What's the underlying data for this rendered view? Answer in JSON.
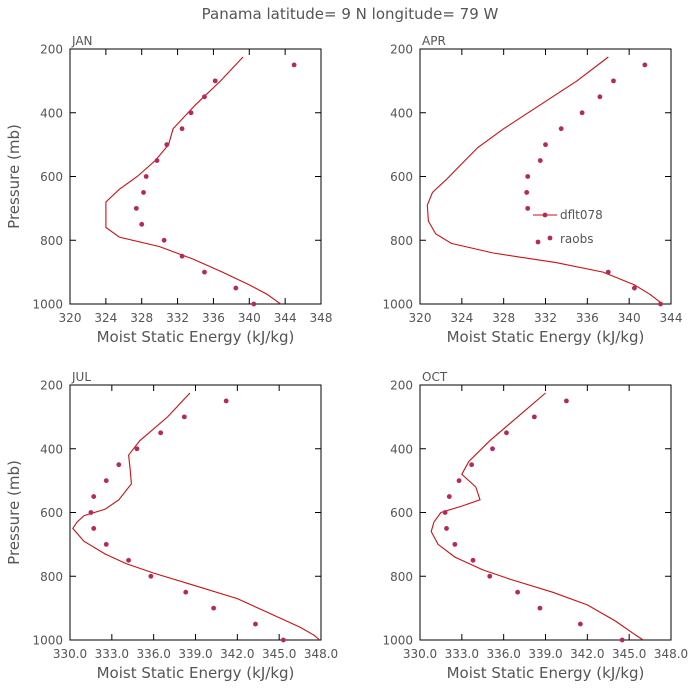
{
  "figure": {
    "title": "Panama  latitude= 9 N longitude= 79 W"
  },
  "colors": {
    "model_line": "#cc1111",
    "obs_dots": "#b8285a",
    "axes": "#000000",
    "text": "#555555"
  },
  "chart_data": [
    {
      "type": "line",
      "title": "JAN",
      "xlabel": "Moist Static Energy (kJ/kg)",
      "ylabel": "Pressure (mb)",
      "xlim": [
        320,
        348
      ],
      "ylim": [
        200,
        1000
      ],
      "y_inverted": true,
      "xticks": [
        320,
        324,
        328,
        332,
        336,
        340,
        344,
        348
      ],
      "xtick_labels": [
        "320",
        "324",
        "328",
        "332",
        "336",
        "340",
        "344",
        "348"
      ],
      "yticks": [
        200,
        400,
        600,
        800,
        1000
      ],
      "ytick_labels": [
        "200",
        "400",
        "600",
        "800",
        "1000"
      ],
      "legend": null,
      "series": [
        {
          "name": "dflt078",
          "style": "line",
          "points": [
            [
              339.3,
              225
            ],
            [
              336.8,
              300
            ],
            [
              334.0,
              375
            ],
            [
              331.5,
              450
            ],
            [
              331.0,
              500
            ],
            [
              329.5,
              550
            ],
            [
              327.5,
              600
            ],
            [
              325.5,
              640
            ],
            [
              324.0,
              680
            ],
            [
              324.0,
              720
            ],
            [
              324.0,
              760
            ],
            [
              325.5,
              790
            ],
            [
              330.0,
              820
            ],
            [
              333.8,
              860
            ],
            [
              337.0,
              900
            ],
            [
              340.0,
              940
            ],
            [
              342.0,
              970
            ],
            [
              343.0,
              990
            ],
            [
              343.5,
              1000
            ]
          ]
        },
        {
          "name": "raobs",
          "style": "dots",
          "points": [
            [
              345.0,
              250
            ],
            [
              336.2,
              300
            ],
            [
              335.0,
              350
            ],
            [
              333.5,
              400
            ],
            [
              332.5,
              450
            ],
            [
              330.8,
              500
            ],
            [
              329.7,
              550
            ],
            [
              328.5,
              600
            ],
            [
              328.2,
              650
            ],
            [
              327.4,
              700
            ],
            [
              328.0,
              750
            ],
            [
              330.5,
              800
            ],
            [
              332.5,
              850
            ],
            [
              335.0,
              900
            ],
            [
              338.5,
              950
            ],
            [
              340.5,
              1000
            ]
          ]
        }
      ]
    },
    {
      "type": "line",
      "title": "APR",
      "xlabel": "Moist Static Energy (kJ/kg)",
      "ylabel": "",
      "xlim": [
        320,
        344
      ],
      "ylim": [
        200,
        1000
      ],
      "y_inverted": true,
      "xticks": [
        320,
        324,
        328,
        332,
        336,
        340,
        344
      ],
      "xtick_labels": [
        "320",
        "324",
        "328",
        "332",
        "336",
        "340",
        "344"
      ],
      "yticks": [
        200,
        400,
        600,
        800,
        1000
      ],
      "ytick_labels": [
        "200",
        "400",
        "600",
        "800",
        "1000"
      ],
      "legend": {
        "placement": "right-center",
        "entries": [
          "dflt078",
          "raobs"
        ]
      },
      "series": [
        {
          "name": "dflt078",
          "style": "line",
          "points": [
            [
              338.0,
              225
            ],
            [
              335.0,
              300
            ],
            [
              331.5,
              375
            ],
            [
              328.0,
              450
            ],
            [
              325.5,
              510
            ],
            [
              324.0,
              560
            ],
            [
              322.5,
              610
            ],
            [
              321.2,
              650
            ],
            [
              320.7,
              690
            ],
            [
              320.8,
              740
            ],
            [
              321.5,
              780
            ],
            [
              323.0,
              810
            ],
            [
              327.0,
              840
            ],
            [
              333.0,
              870
            ],
            [
              337.5,
              900
            ],
            [
              340.5,
              940
            ],
            [
              342.0,
              970
            ],
            [
              343.0,
              995
            ]
          ]
        },
        {
          "name": "raobs",
          "style": "dots",
          "points": [
            [
              341.5,
              250
            ],
            [
              338.5,
              300
            ],
            [
              337.2,
              350
            ],
            [
              335.5,
              400
            ],
            [
              333.5,
              450
            ],
            [
              332.0,
              500
            ],
            [
              331.5,
              550
            ],
            [
              330.3,
              600
            ],
            [
              330.2,
              650
            ],
            [
              330.3,
              700
            ],
            [
              338.0,
              900
            ],
            [
              340.5,
              950
            ],
            [
              343.0,
              1000
            ]
          ]
        }
      ]
    },
    {
      "type": "line",
      "title": "JUL",
      "xlabel": "Moist Static Energy (kJ/kg)",
      "ylabel": "Pressure (mb)",
      "xlim": [
        330,
        348
      ],
      "ylim": [
        200,
        1000
      ],
      "y_inverted": true,
      "xticks": [
        330,
        333,
        336,
        339,
        342,
        345,
        348
      ],
      "xtick_labels": [
        "330.0",
        "333.0",
        "336.0",
        "339.0",
        "342.0",
        "345.0",
        "348.0"
      ],
      "yticks": [
        200,
        400,
        600,
        800,
        1000
      ],
      "ytick_labels": [
        "200",
        "400",
        "600",
        "800",
        "1000"
      ],
      "legend": null,
      "series": [
        {
          "name": "dflt078",
          "style": "line",
          "points": [
            [
              338.6,
              225
            ],
            [
              337.0,
              300
            ],
            [
              335.0,
              375
            ],
            [
              334.2,
              420
            ],
            [
              334.3,
              460
            ],
            [
              334.4,
              510
            ],
            [
              333.5,
              560
            ],
            [
              332.5,
              590
            ],
            [
              331.0,
              610
            ],
            [
              330.5,
              630
            ],
            [
              330.2,
              650
            ],
            [
              331.0,
              690
            ],
            [
              332.5,
              730
            ],
            [
              334.0,
              760
            ],
            [
              336.0,
              790
            ],
            [
              339.0,
              830
            ],
            [
              342.0,
              870
            ],
            [
              344.5,
              920
            ],
            [
              346.5,
              960
            ],
            [
              347.5,
              985
            ],
            [
              347.9,
              1000
            ]
          ]
        },
        {
          "name": "raobs",
          "style": "dots",
          "points": [
            [
              341.2,
              250
            ],
            [
              338.2,
              300
            ],
            [
              336.5,
              350
            ],
            [
              334.8,
              400
            ],
            [
              333.5,
              450
            ],
            [
              332.6,
              500
            ],
            [
              331.7,
              550
            ],
            [
              331.5,
              600
            ],
            [
              331.7,
              650
            ],
            [
              332.6,
              700
            ],
            [
              334.2,
              750
            ],
            [
              335.8,
              800
            ],
            [
              338.3,
              850
            ],
            [
              340.3,
              900
            ],
            [
              343.3,
              950
            ],
            [
              345.3,
              1000
            ]
          ]
        }
      ]
    },
    {
      "type": "line",
      "title": "OCT",
      "xlabel": "Moist Static Energy (kJ/kg)",
      "ylabel": "",
      "xlim": [
        330,
        348
      ],
      "ylim": [
        200,
        1000
      ],
      "y_inverted": true,
      "xticks": [
        330,
        333,
        336,
        339,
        342,
        345,
        348
      ],
      "xtick_labels": [
        "330.0",
        "333.0",
        "336.0",
        "339.0",
        "342.0",
        "345.0",
        "348.0"
      ],
      "yticks": [
        200,
        400,
        600,
        800,
        1000
      ],
      "ytick_labels": [
        "200",
        "400",
        "600",
        "800",
        "1000"
      ],
      "legend": null,
      "series": [
        {
          "name": "dflt078",
          "style": "line",
          "points": [
            [
              339.0,
              225
            ],
            [
              337.0,
              300
            ],
            [
              335.0,
              375
            ],
            [
              333.5,
              440
            ],
            [
              333.0,
              480
            ],
            [
              334.0,
              520
            ],
            [
              334.3,
              560
            ],
            [
              333.0,
              580
            ],
            [
              331.5,
              600
            ],
            [
              331.0,
              630
            ],
            [
              330.8,
              660
            ],
            [
              331.3,
              700
            ],
            [
              332.5,
              740
            ],
            [
              334.5,
              780
            ],
            [
              336.5,
              810
            ],
            [
              339.5,
              850
            ],
            [
              342.0,
              890
            ],
            [
              344.0,
              940
            ],
            [
              345.3,
              980
            ],
            [
              346.0,
              1000
            ]
          ]
        },
        {
          "name": "raobs",
          "style": "dots",
          "points": [
            [
              340.5,
              250
            ],
            [
              338.2,
              300
            ],
            [
              336.2,
              350
            ],
            [
              335.2,
              400
            ],
            [
              333.7,
              450
            ],
            [
              332.8,
              500
            ],
            [
              332.1,
              550
            ],
            [
              331.8,
              600
            ],
            [
              331.9,
              650
            ],
            [
              332.5,
              700
            ],
            [
              333.8,
              750
            ],
            [
              335.0,
              800
            ],
            [
              337.0,
              850
            ],
            [
              338.6,
              900
            ],
            [
              341.5,
              950
            ],
            [
              344.5,
              1000
            ]
          ]
        }
      ]
    }
  ]
}
